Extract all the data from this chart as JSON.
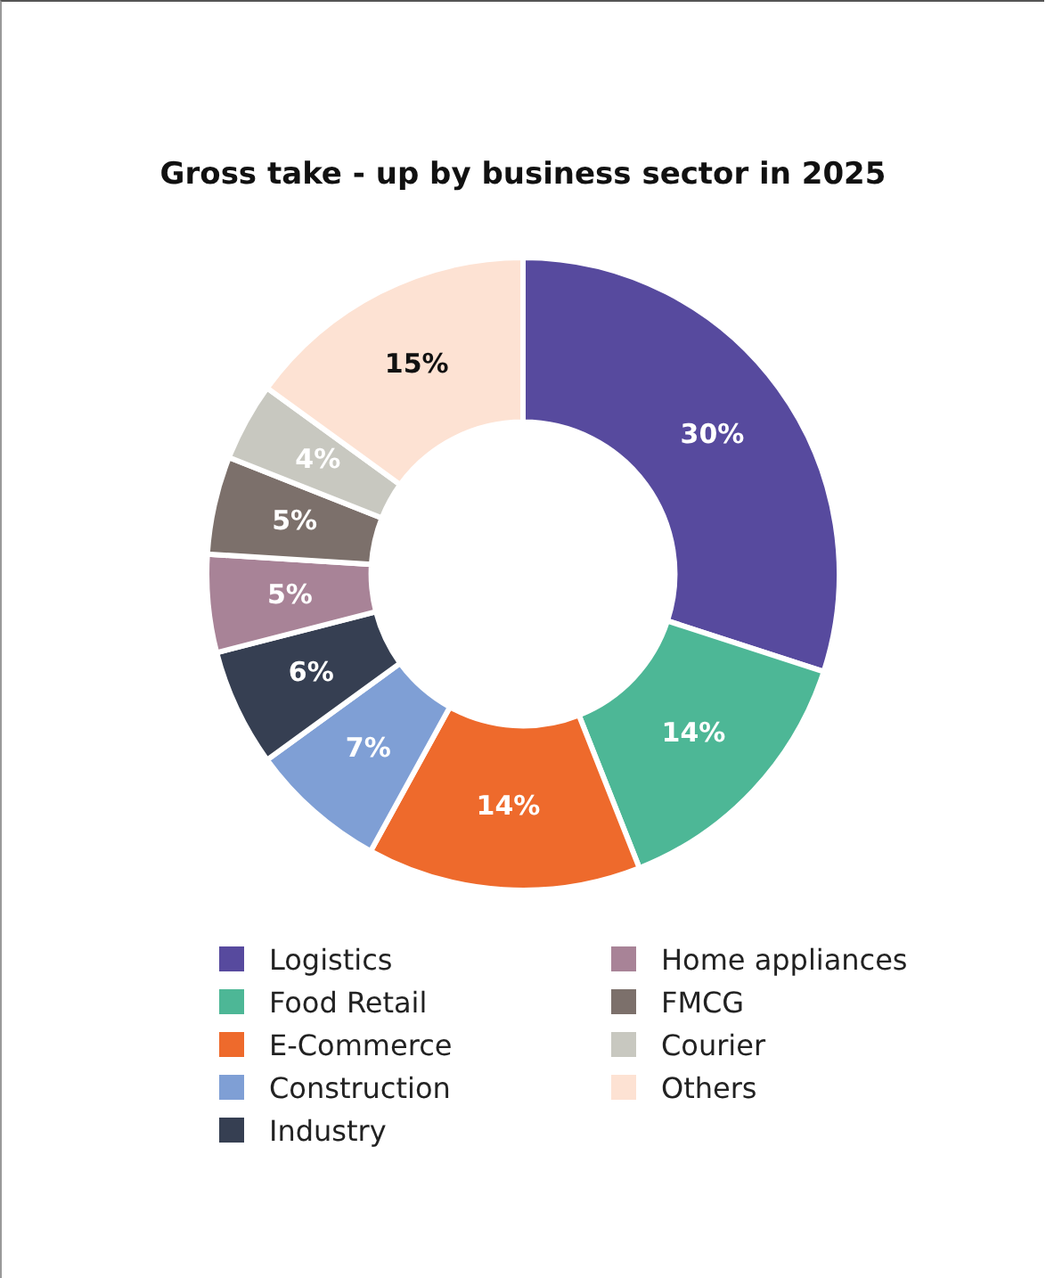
{
  "chart_data": {
    "type": "donut",
    "title": "Gross take - up by business sector in 2025",
    "categories": [
      "Logistics",
      "Food Retail",
      "E-Commerce",
      "Construction",
      "Industry",
      "Home appliances",
      "FMCG",
      "Courier",
      "Others"
    ],
    "values": [
      30,
      14,
      14,
      7,
      6,
      5,
      5,
      4,
      15
    ],
    "colors": [
      "#574a9e",
      "#4db796",
      "#ee6a2c",
      "#7f9fd5",
      "#363f52",
      "#a88397",
      "#7c706b",
      "#c8c8c0",
      "#fde2d3"
    ],
    "value_labels": [
      "30%",
      "14%",
      "14%",
      "7%",
      "6%",
      "5%",
      "5%",
      "4%",
      "15%"
    ],
    "legend": "bottom"
  }
}
